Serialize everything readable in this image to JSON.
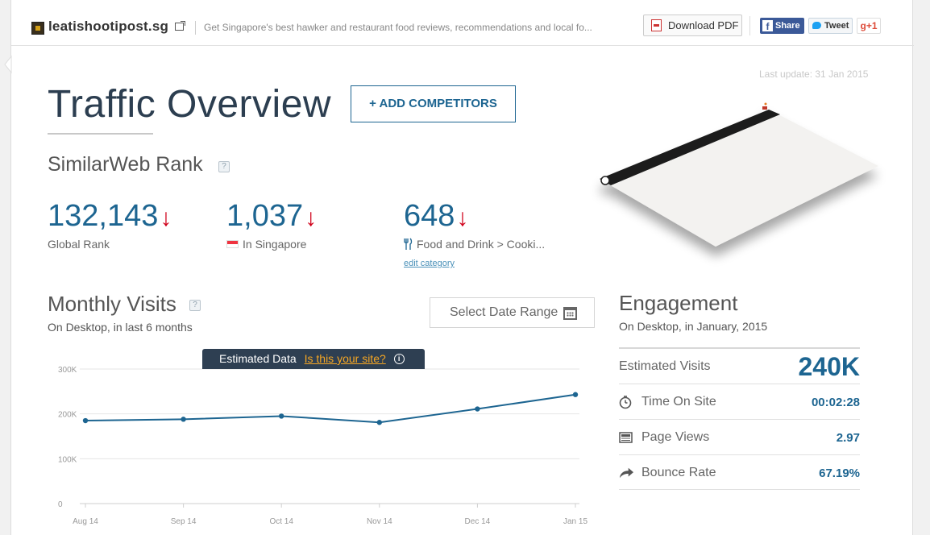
{
  "header": {
    "site_name": "leatishootipost.sg",
    "site_description": "Get Singapore's best hawker and restaurant food reviews, recommendations and local fo...",
    "download_pdf_label": "Download PDF",
    "share_label": "Share",
    "tweet_label": "Tweet",
    "gplus_label": "g+1"
  },
  "page": {
    "last_update": "Last update: 31 Jan 2015",
    "title": "Traffic Overview",
    "add_competitors_label": "+ ADD COMPETITORS"
  },
  "rank": {
    "heading": "SimilarWeb Rank",
    "help": "?",
    "global": {
      "value": "132,143",
      "arrow": "↓",
      "label": "Global Rank"
    },
    "country": {
      "value": "1,037",
      "arrow": "↓",
      "label": "In Singapore"
    },
    "category": {
      "value": "648",
      "arrow": "↓",
      "label": "Food and Drink > Cooki...",
      "edit_label": "edit category"
    }
  },
  "monthly_visits": {
    "heading": "Monthly Visits",
    "help": "?",
    "subtitle": "On Desktop, in last 6 months",
    "date_range_label": "Select Date Range",
    "estimated_label": "Estimated Data",
    "is_your_site_label": "Is this your site?",
    "info_glyph": "i"
  },
  "chart_data": {
    "type": "line",
    "categories": [
      "Aug 14",
      "Sep 14",
      "Oct 14",
      "Nov 14",
      "Dec 14",
      "Jan 15"
    ],
    "series": [
      {
        "name": "",
        "values": [
          185000,
          188000,
          195000,
          181000,
          211000,
          243000
        ]
      }
    ],
    "yticks": [
      "0",
      "100K",
      "200K",
      "300K"
    ],
    "ylim": [
      0,
      300000
    ],
    "grid": true,
    "color": "#1d6591"
  },
  "engagement": {
    "heading": "Engagement",
    "subtitle": "On Desktop, in January, 2015",
    "rows": [
      {
        "label": "Estimated Visits",
        "value": "240K"
      },
      {
        "label": "Time On Site",
        "value": "00:02:28",
        "icon": "clock-icon"
      },
      {
        "label": "Page Views",
        "value": "2.97",
        "icon": "pages-icon"
      },
      {
        "label": "Bounce Rate",
        "value": "67.19%",
        "icon": "bounce-arrow-icon"
      }
    ]
  },
  "colors": {
    "accent": "#1d6591",
    "rank_down": "#d0021b",
    "badge_bg": "#2e3f52",
    "badge_link": "#f5a623"
  }
}
